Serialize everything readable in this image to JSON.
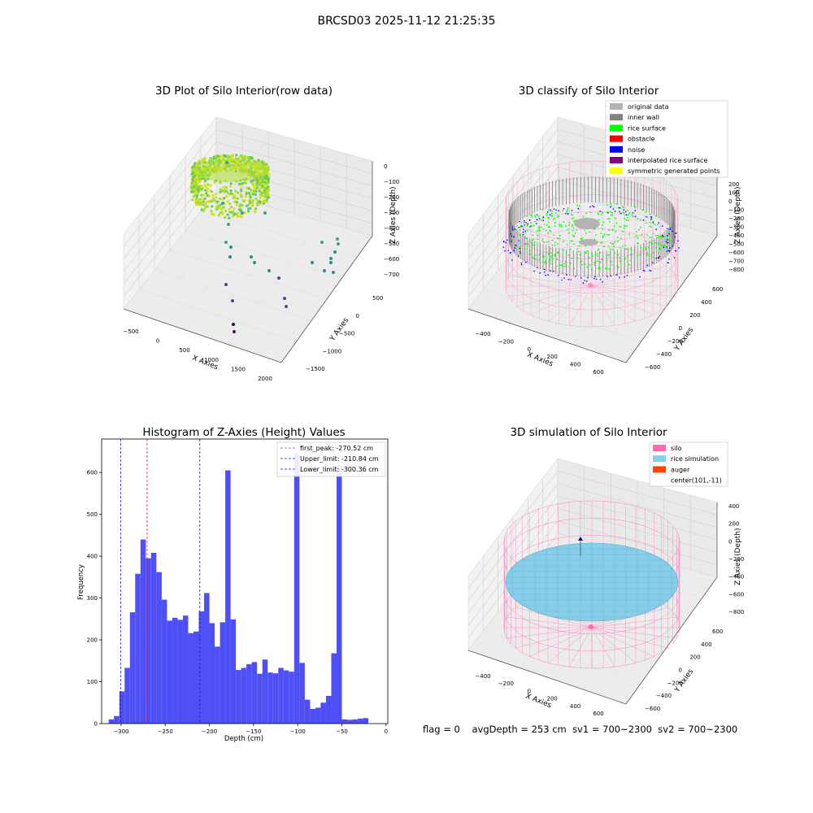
{
  "figure": {
    "suptitle": "BRCSD03 2025-11-12 21:25:35"
  },
  "status": {
    "flag": "flag = 0",
    "avg_depth": "avgDepth = 253 cm",
    "sv1": "sv1 = 700~2300",
    "sv2": "sv2 = 700~2300"
  },
  "colors": {
    "hist_bar": "#4f4ff6",
    "first_peak_line": "#e02020",
    "limit_line": "#1a1ae0",
    "original_data": "#b3b3b3",
    "inner_wall": "#808080",
    "rice_surface": "#00ff00",
    "obstacle": "#ff0000",
    "noise": "#0000ff",
    "interpolated_rice_surface": "#800080",
    "symmetric_generated_points": "#ffff00",
    "silo": "#ff69b4",
    "rice_simulation": "#87ceeb",
    "auger": "#ff4500",
    "pane": "#f2f2f2"
  },
  "chart_data": [
    {
      "type": "scatter",
      "title": "3D Plot of Silo Interior(row data)",
      "xlabel": "X Axies",
      "ylabel": "Y Axies",
      "zlabel": "Z Axies (Depth)",
      "x_ticks": [
        "−500",
        "0",
        "500",
        "1000",
        "1500",
        "2000"
      ],
      "y_ticks": [
        "500",
        "0",
        "−500",
        "−1000",
        "−1500"
      ],
      "z_ticks": [
        "0",
        "−100",
        "−200",
        "−300",
        "−400",
        "−500",
        "−600",
        "−700"
      ],
      "xlim": [
        -600,
        2100
      ],
      "ylim": [
        -1600,
        600
      ],
      "zlim": [
        -700,
        0
      ],
      "colormap": "viridis",
      "description_series": "dense ring of points near z≈-150 to -300 plus sparse scattered outliers"
    },
    {
      "type": "scatter",
      "title": "3D classify of Silo Interior",
      "xlabel": "X Axies",
      "ylabel": "Y Axies",
      "zlabel": "Z Axies (Depth)",
      "x_ticks": [
        "−400",
        "−200",
        "0",
        "200",
        "400",
        "600"
      ],
      "y_ticks": [
        "600",
        "400",
        "200",
        "0",
        "−200",
        "−400",
        "−600"
      ],
      "z_ticks": [
        "200",
        "100",
        "0",
        "−100",
        "−200",
        "−300",
        "−400",
        "−500",
        "−600",
        "−700",
        "−800"
      ],
      "legend": [
        "original data",
        "inner wall",
        "rice surface",
        "obstacle",
        "noise",
        "interpolated rice surface",
        "symmetric generated points"
      ],
      "legend_position": "top-right"
    },
    {
      "type": "bar",
      "title": "Histogram of Z-Axies (Height) Values",
      "xlabel": "Depth (cm)",
      "ylabel": "Frequency",
      "xlim": [
        -322,
        2
      ],
      "ylim": [
        0,
        680
      ],
      "x_ticks": [
        "−300",
        "−250",
        "−200",
        "−150",
        "−100",
        "−50",
        "0"
      ],
      "y_ticks": [
        "0",
        "100",
        "200",
        "300",
        "400",
        "500",
        "600"
      ],
      "bin_width": 6,
      "bin_start": -314,
      "values": [
        10,
        18,
        77,
        133,
        266,
        358,
        440,
        395,
        408,
        362,
        296,
        246,
        253,
        248,
        258,
        216,
        220,
        268,
        312,
        240,
        184,
        242,
        605,
        249,
        128,
        133,
        142,
        147,
        119,
        153,
        122,
        120,
        133,
        127,
        124,
        646,
        145,
        57,
        35,
        38,
        50,
        66,
        168,
        618,
        10,
        9,
        10,
        12,
        13
      ],
      "vlines": [
        {
          "x": -270.52,
          "label": "first_peak: -270.52 cm",
          "color": "red"
        },
        {
          "x": -210.84,
          "label": "Upper_limit: -210.84 cm",
          "color": "blue"
        },
        {
          "x": -300.36,
          "label": "Lower_limit: -300.36 cm",
          "color": "blue"
        }
      ],
      "legend_position": "top-right"
    },
    {
      "type": "surface",
      "title": "3D simulation of Silo Interior",
      "xlabel": "X Axies",
      "ylabel": "Y Axies",
      "zlabel": "Z Axies (Depth)",
      "x_ticks": [
        "−400",
        "−200",
        "0",
        "200",
        "400",
        "600"
      ],
      "y_ticks": [
        "600",
        "400",
        "200",
        "0",
        "−200",
        "−400",
        "−600"
      ],
      "z_ticks": [
        "400",
        "200",
        "0",
        "−200",
        "−400",
        "−600",
        "−800"
      ],
      "legend": [
        "silo",
        "rice simulation",
        "auger",
        "center(101,-11)"
      ],
      "legend_position": "top-right"
    }
  ]
}
